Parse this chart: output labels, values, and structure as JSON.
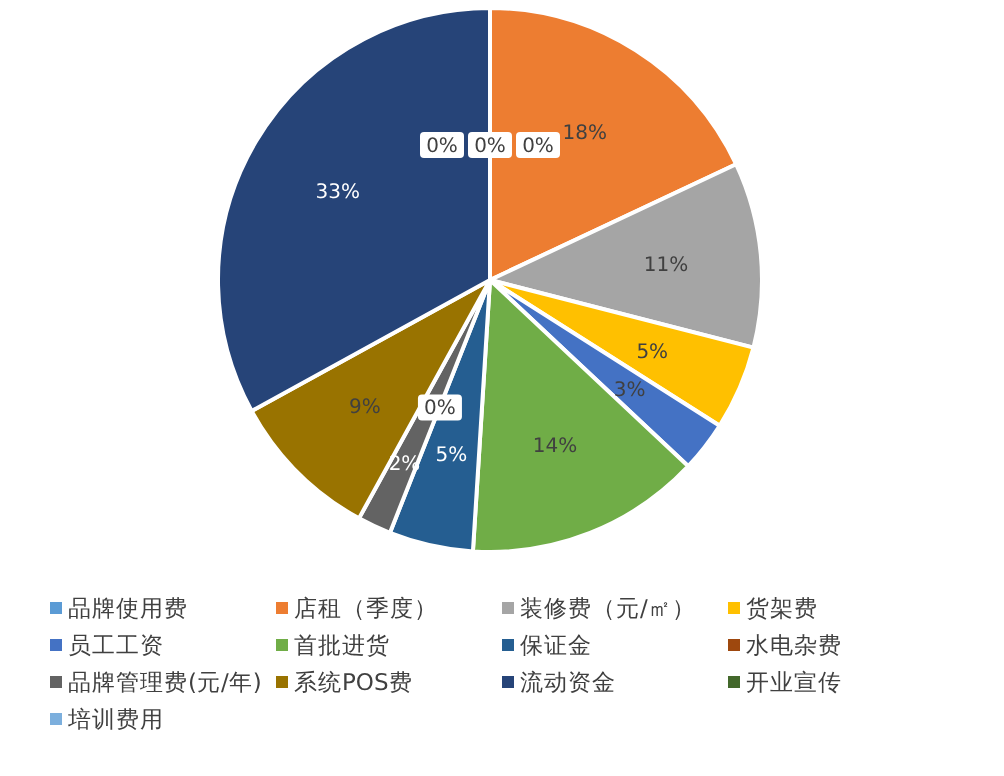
{
  "chart_data": {
    "type": "pie",
    "categories": [
      "品牌使用费",
      "店租（季度）",
      "装修费（元/㎡）",
      "货架费",
      "员工工资",
      "首批进货",
      "保证金",
      "水电杂费",
      "品牌管理费(元/年)",
      "系统POS费",
      "流动资金",
      "开业宣传",
      "培训费用"
    ],
    "values": [
      0,
      18,
      11,
      5,
      3,
      14,
      5,
      0,
      2,
      9,
      33,
      0,
      0
    ],
    "colors": [
      "#5b9bd5",
      "#ed7d31",
      "#a5a5a5",
      "#ffc000",
      "#4472c4",
      "#70ad47",
      "#255e91",
      "#9e480e",
      "#636363",
      "#997300",
      "#264478",
      "#43682b",
      "#7cafdd"
    ],
    "value_labels": [
      "0%",
      "18%",
      "11%",
      "5%",
      "3%",
      "14%",
      "5%",
      "0%",
      "2%",
      "9%",
      "33%",
      "0%",
      "0%"
    ],
    "legend": "bottom"
  }
}
